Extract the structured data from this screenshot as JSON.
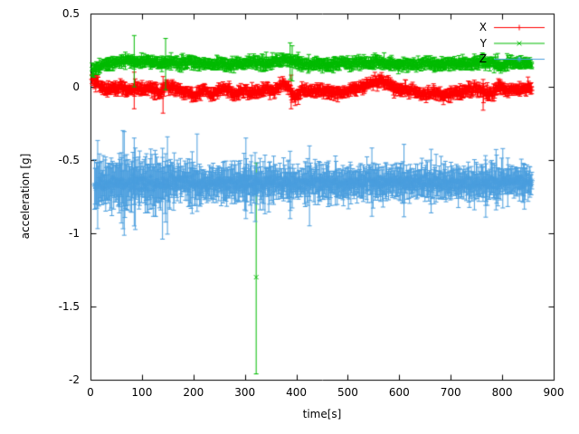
{
  "chart_data": {
    "type": "scatter",
    "style": "points-with-errorbars",
    "title": "",
    "xlabel": "time[s]",
    "ylabel": "acceleration [g]",
    "xlim": [
      0,
      900
    ],
    "ylim": [
      -2,
      0.5
    ],
    "grid": false,
    "legend_position": "top-right-inside",
    "axis_color": "#000000",
    "background_color": "#ffffff",
    "x_ticks": [
      {
        "value": 0,
        "label": "0"
      },
      {
        "value": 100,
        "label": "100"
      },
      {
        "value": 200,
        "label": "200"
      },
      {
        "value": 300,
        "label": "300"
      },
      {
        "value": 400,
        "label": "400"
      },
      {
        "value": 500,
        "label": "500"
      },
      {
        "value": 600,
        "label": "600"
      },
      {
        "value": 700,
        "label": "700"
      },
      {
        "value": 800,
        "label": "800"
      },
      {
        "value": 900,
        "label": "900"
      }
    ],
    "y_ticks": [
      {
        "value": 0.5,
        "label": "0.5"
      },
      {
        "value": 0,
        "label": "0"
      },
      {
        "value": -0.5,
        "label": "-0.5"
      },
      {
        "value": -1,
        "label": "-1"
      },
      {
        "value": -1.5,
        "label": "-1.5"
      },
      {
        "value": -2,
        "label": "-2"
      }
    ],
    "series": [
      {
        "name": "X",
        "color": "#ff0000",
        "marker": "plus",
        "seed": 101,
        "t_start": 3,
        "t_end": 858,
        "t_step": 1.2,
        "noise_sigma": 0.011,
        "err_base": 0.02,
        "err_var": 0.014,
        "anchors": [
          [
            3,
            0.05
          ],
          [
            10,
            0.04
          ],
          [
            18,
            0.01
          ],
          [
            30,
            -0.02
          ],
          [
            45,
            -0.01
          ],
          [
            60,
            0.0
          ],
          [
            75,
            -0.02
          ],
          [
            90,
            -0.01
          ],
          [
            105,
            -0.02
          ],
          [
            120,
            -0.01
          ],
          [
            135,
            -0.05
          ],
          [
            148,
            0.01
          ],
          [
            165,
            -0.01
          ],
          [
            185,
            -0.03
          ],
          [
            205,
            -0.06
          ],
          [
            222,
            -0.02
          ],
          [
            238,
            -0.06
          ],
          [
            252,
            -0.01
          ],
          [
            268,
            -0.02
          ],
          [
            282,
            -0.05
          ],
          [
            298,
            -0.02
          ],
          [
            312,
            -0.04
          ],
          [
            328,
            -0.03
          ],
          [
            342,
            -0.02
          ],
          [
            358,
            -0.03
          ],
          [
            372,
            0.02
          ],
          [
            386,
            -0.01
          ],
          [
            398,
            -0.07
          ],
          [
            412,
            -0.02
          ],
          [
            428,
            -0.03
          ],
          [
            448,
            -0.02
          ],
          [
            468,
            -0.04
          ],
          [
            488,
            -0.04
          ],
          [
            508,
            -0.02
          ],
          [
            528,
            0.0
          ],
          [
            548,
            0.03
          ],
          [
            565,
            0.05
          ],
          [
            582,
            0.01
          ],
          [
            600,
            -0.02
          ],
          [
            618,
            -0.02
          ],
          [
            635,
            -0.04
          ],
          [
            652,
            -0.05
          ],
          [
            668,
            -0.04
          ],
          [
            685,
            -0.06
          ],
          [
            702,
            -0.05
          ],
          [
            718,
            -0.04
          ],
          [
            735,
            -0.02
          ],
          [
            752,
            -0.01
          ],
          [
            768,
            -0.05
          ],
          [
            782,
            -0.04
          ],
          [
            795,
            0.01
          ],
          [
            810,
            -0.03
          ],
          [
            825,
            -0.02
          ],
          [
            840,
            -0.01
          ],
          [
            858,
            -0.01
          ]
        ],
        "spikes": [
          {
            "t": 85,
            "lo": -0.15,
            "hi": 0.1
          },
          {
            "t": 141,
            "lo": -0.18,
            "hi": 0.07
          },
          {
            "t": 390,
            "lo": -0.15,
            "hi": 0.08
          },
          {
            "t": 763,
            "lo": -0.16,
            "hi": 0.05
          }
        ]
      },
      {
        "name": "Y",
        "color": "#00bb00",
        "marker": "cross",
        "seed": 202,
        "t_start": 3,
        "t_end": 858,
        "t_step": 1.2,
        "noise_sigma": 0.01,
        "err_base": 0.02,
        "err_var": 0.013,
        "anchors": [
          [
            3,
            0.1
          ],
          [
            15,
            0.13
          ],
          [
            30,
            0.16
          ],
          [
            50,
            0.17
          ],
          [
            70,
            0.18
          ],
          [
            90,
            0.17
          ],
          [
            110,
            0.17
          ],
          [
            130,
            0.16
          ],
          [
            150,
            0.17
          ],
          [
            170,
            0.16
          ],
          [
            190,
            0.17
          ],
          [
            210,
            0.16
          ],
          [
            230,
            0.15
          ],
          [
            250,
            0.16
          ],
          [
            270,
            0.15
          ],
          [
            290,
            0.16
          ],
          [
            310,
            0.17
          ],
          [
            330,
            0.16
          ],
          [
            350,
            0.17
          ],
          [
            370,
            0.18
          ],
          [
            385,
            0.19
          ],
          [
            400,
            0.16
          ],
          [
            420,
            0.15
          ],
          [
            440,
            0.16
          ],
          [
            460,
            0.15
          ],
          [
            480,
            0.16
          ],
          [
            500,
            0.16
          ],
          [
            520,
            0.17
          ],
          [
            540,
            0.16
          ],
          [
            560,
            0.17
          ],
          [
            580,
            0.16
          ],
          [
            600,
            0.15
          ],
          [
            620,
            0.16
          ],
          [
            640,
            0.15
          ],
          [
            660,
            0.16
          ],
          [
            680,
            0.15
          ],
          [
            700,
            0.16
          ],
          [
            720,
            0.16
          ],
          [
            740,
            0.16
          ],
          [
            760,
            0.17
          ],
          [
            780,
            0.16
          ],
          [
            800,
            0.14
          ],
          [
            815,
            0.17
          ],
          [
            830,
            0.16
          ],
          [
            845,
            0.16
          ],
          [
            858,
            0.16
          ]
        ],
        "spikes": [
          {
            "t": 85,
            "lo": 0.0,
            "hi": 0.35
          },
          {
            "t": 146,
            "lo": -0.02,
            "hi": 0.33
          },
          {
            "t": 322,
            "y": -1.3,
            "lo": -1.96,
            "hi": -0.52
          },
          {
            "t": 388,
            "lo": 0.05,
            "hi": 0.3
          },
          {
            "t": 392,
            "lo": 0.04,
            "hi": 0.28
          }
        ]
      },
      {
        "name": "Z",
        "color": "#4a9ede",
        "marker": "star",
        "seed": 303,
        "t_start": 8,
        "t_end": 858,
        "t_step": 1.2,
        "noise_sigma": 0.024,
        "err_base": 0.055,
        "err_var": 0.04,
        "err_spike_prob": 0.05,
        "err_spike_mult": 2.0,
        "early_boost": {
          "t_until": 165,
          "mult": 1.5
        },
        "anchors": [
          [
            8,
            -0.67
          ],
          [
            30,
            -0.66
          ],
          [
            60,
            -0.66
          ],
          [
            90,
            -0.65
          ],
          [
            120,
            -0.66
          ],
          [
            150,
            -0.66
          ],
          [
            180,
            -0.65
          ],
          [
            210,
            -0.66
          ],
          [
            240,
            -0.66
          ],
          [
            270,
            -0.65
          ],
          [
            300,
            -0.66
          ],
          [
            330,
            -0.66
          ],
          [
            360,
            -0.66
          ],
          [
            390,
            -0.66
          ],
          [
            420,
            -0.65
          ],
          [
            450,
            -0.66
          ],
          [
            480,
            -0.65
          ],
          [
            510,
            -0.66
          ],
          [
            540,
            -0.65
          ],
          [
            570,
            -0.66
          ],
          [
            600,
            -0.65
          ],
          [
            630,
            -0.65
          ],
          [
            660,
            -0.66
          ],
          [
            690,
            -0.65
          ],
          [
            720,
            -0.65
          ],
          [
            750,
            -0.66
          ],
          [
            780,
            -0.65
          ],
          [
            810,
            -0.65
          ],
          [
            840,
            -0.65
          ],
          [
            858,
            -0.65
          ]
        ],
        "spikes": [
          {
            "t": 60,
            "lo": -0.93,
            "hi": -0.45
          },
          {
            "t": 85,
            "lo": -0.95,
            "hi": -0.35
          },
          {
            "t": 140,
            "lo": -1.04,
            "hi": -0.42
          },
          {
            "t": 302,
            "lo": -0.9,
            "hi": -0.35
          },
          {
            "t": 320,
            "lo": -0.92,
            "hi": -0.45
          },
          {
            "t": 388,
            "lo": -0.9,
            "hi": -0.44
          },
          {
            "t": 768,
            "lo": -0.89,
            "hi": -0.5
          }
        ]
      }
    ]
  }
}
